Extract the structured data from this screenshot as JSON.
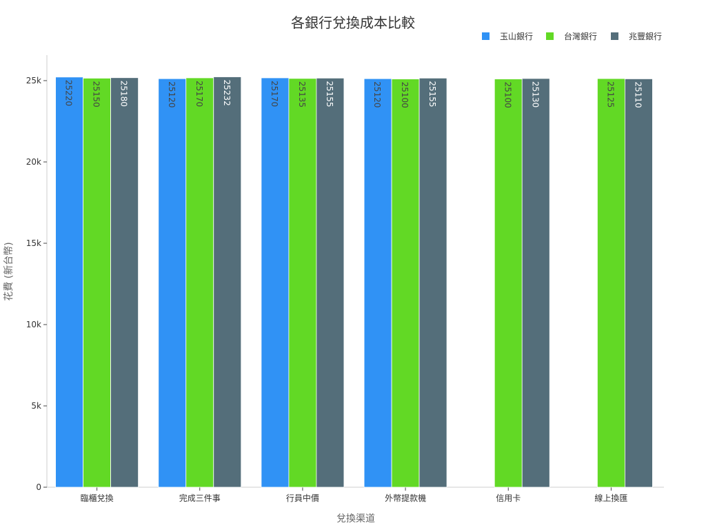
{
  "chart_data": {
    "type": "bar",
    "title": "各銀行兌換成本比較",
    "xlabel": "兌換渠道",
    "ylabel": "花費 (新台幣)",
    "categories": [
      "臨櫃兌換",
      "完成三件事",
      "行員中價",
      "外幣提款機",
      "信用卡",
      "線上換匯"
    ],
    "series": [
      {
        "name": "玉山銀行",
        "color": "#3092f5",
        "label_color": "#444444",
        "values": [
          25220,
          25120,
          25170,
          25120,
          null,
          null
        ]
      },
      {
        "name": "台灣銀行",
        "color": "#62d925",
        "label_color": "#444444",
        "values": [
          25150,
          25170,
          25135,
          25100,
          25100,
          25125
        ]
      },
      {
        "name": "兆豐銀行",
        "color": "#546e7a",
        "label_color": "#ffffff",
        "values": [
          25180,
          25232,
          25155,
          25155,
          25130,
          25110
        ]
      }
    ],
    "ylim": [
      0,
      26600
    ],
    "yticks": [
      0,
      5000,
      10000,
      15000,
      20000,
      25000
    ],
    "ytick_labels": [
      "0",
      "5k",
      "10k",
      "15k",
      "20k",
      "25k"
    ],
    "grid": false,
    "legend": "top-right"
  }
}
